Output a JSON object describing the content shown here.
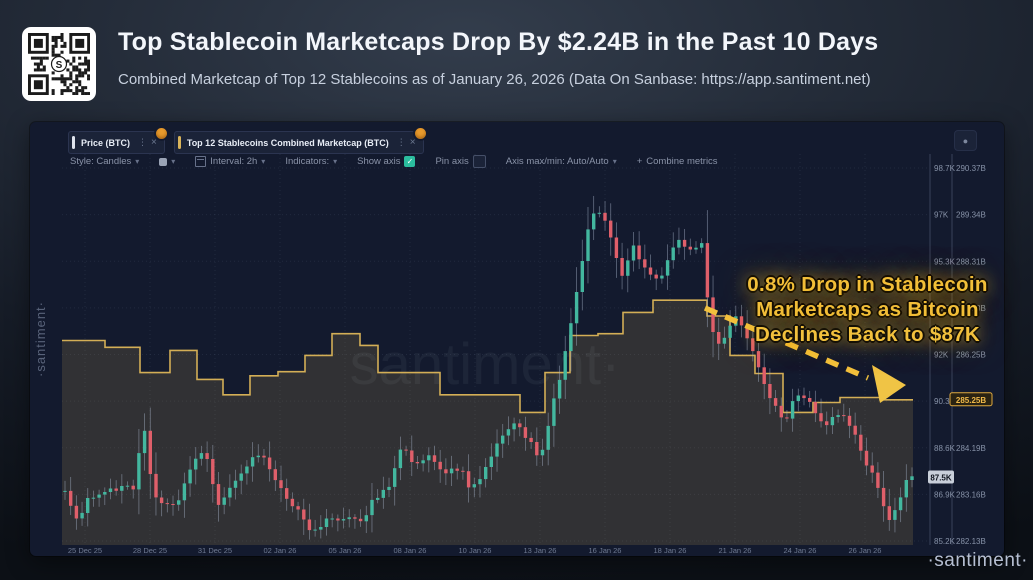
{
  "header": {
    "title": "Top Stablecoin Marketcaps Drop By $2.24B in the Past 10 Days",
    "subtitle": "Combined Marketcap of Top 12 Stablecoins as of January 26, 2026 (Data On Sanbase: https://app.santiment.net)"
  },
  "chart_toolbar": {
    "tabs": [
      {
        "label": "Price (BTC)",
        "accent": "#dfe4ee"
      },
      {
        "label": "Top 12 Stablecoins Combined Marketcap (BTC)",
        "accent": "#d9b45b"
      }
    ],
    "controls": {
      "style_label": "Style: Candles",
      "interval_label": "Interval: 2h",
      "indicators_label": "Indicators:",
      "show_axis_label": "Show axis",
      "pin_axis_label": "Pin axis",
      "axis_maxmin_label": "Axis max/min: Auto/Auto",
      "combine_label": "Combine metrics"
    }
  },
  "icons": {
    "tab_menu": "⋮",
    "tab_close": "×",
    "caret": "▾",
    "checkbox_check": "✓",
    "combine_plus": "+",
    "panel_button_dot": "●"
  },
  "annotation": {
    "lines": [
      "0.8% Drop in Stablecoin",
      "Marketcaps as Bitcoin",
      "Declines Back to $87K"
    ],
    "color": "#f2c13d"
  },
  "badges": {
    "price_current": "87.5K",
    "marketcap_current": "285.25B"
  },
  "watermark": "santiment·",
  "brand": {
    "side": "·santiment·",
    "bottom": "·santiment·"
  },
  "chart_data": {
    "type": "candlestick+step-area",
    "title": "Price (BTC) vs Top 12 Stablecoins Combined Marketcap",
    "x_dates": [
      "25 Dec 25",
      "28 Dec 25",
      "31 Dec 25",
      "02 Jan 26",
      "05 Jan 26",
      "08 Jan 26",
      "10 Jan 26",
      "13 Jan 26",
      "16 Jan 26",
      "18 Jan 26",
      "21 Jan 26",
      "24 Jan 26",
      "26 Jan 26"
    ],
    "price_axis": {
      "labels": [
        "98.7K",
        "97K",
        "95.3K",
        "93.6K",
        "92K",
        "90.3K",
        "88.6K",
        "86.9K",
        "85.2K"
      ],
      "max": 98.7,
      "min": 85.2
    },
    "marketcap_axis": {
      "labels": [
        "290.37B",
        "289.34B",
        "288.31B",
        "287.28B",
        "286.25B",
        "285.22B",
        "284.19B",
        "283.16B",
        "282.13B"
      ],
      "max": 290.37,
      "min": 282.13
    },
    "price_series_keyframes": [
      [
        35,
        87.0
      ],
      [
        45,
        85.9
      ],
      [
        60,
        86.8
      ],
      [
        80,
        87.1
      ],
      [
        105,
        87.2
      ],
      [
        113,
        89.6
      ],
      [
        122,
        87.0
      ],
      [
        135,
        86.4
      ],
      [
        150,
        86.7
      ],
      [
        162,
        88.0
      ],
      [
        175,
        88.5
      ],
      [
        188,
        86.6
      ],
      [
        205,
        87.4
      ],
      [
        228,
        88.4
      ],
      [
        240,
        87.8
      ],
      [
        255,
        86.9
      ],
      [
        270,
        86.2
      ],
      [
        278,
        85.5
      ],
      [
        295,
        85.9
      ],
      [
        320,
        86.1
      ],
      [
        333,
        85.8
      ],
      [
        345,
        86.8
      ],
      [
        360,
        87.3
      ],
      [
        370,
        88.6
      ],
      [
        385,
        88.0
      ],
      [
        400,
        88.4
      ],
      [
        415,
        87.6
      ],
      [
        430,
        87.9
      ],
      [
        442,
        87.0
      ],
      [
        455,
        87.8
      ],
      [
        470,
        88.8
      ],
      [
        485,
        89.6
      ],
      [
        498,
        88.9
      ],
      [
        510,
        88.2
      ],
      [
        522,
        90.0
      ],
      [
        535,
        92.0
      ],
      [
        548,
        94.5
      ],
      [
        560,
        96.9
      ],
      [
        572,
        97.2
      ],
      [
        582,
        95.9
      ],
      [
        592,
        94.8
      ],
      [
        602,
        95.9
      ],
      [
        615,
        95.2
      ],
      [
        628,
        94.6
      ],
      [
        638,
        95.3
      ],
      [
        650,
        96.2
      ],
      [
        660,
        95.7
      ],
      [
        672,
        95.9
      ],
      [
        680,
        92.9
      ],
      [
        692,
        92.3
      ],
      [
        705,
        93.3
      ],
      [
        718,
        92.6
      ],
      [
        730,
        91.4
      ],
      [
        742,
        90.3
      ],
      [
        755,
        89.5
      ],
      [
        768,
        90.6
      ],
      [
        782,
        90.0
      ],
      [
        795,
        89.4
      ],
      [
        808,
        89.9
      ],
      [
        820,
        89.3
      ],
      [
        832,
        88.4
      ],
      [
        845,
        87.3
      ],
      [
        858,
        85.9
      ],
      [
        868,
        86.4
      ],
      [
        878,
        87.5
      ]
    ],
    "marketcap_steps": [
      [
        32,
        286.56
      ],
      [
        75,
        286.41
      ],
      [
        110,
        285.85
      ],
      [
        140,
        286.34
      ],
      [
        167,
        285.7
      ],
      [
        193,
        285.36
      ],
      [
        220,
        285.78
      ],
      [
        248,
        285.87
      ],
      [
        275,
        286.23
      ],
      [
        302,
        286.71
      ],
      [
        330,
        286.45
      ],
      [
        348,
        285.85
      ],
      [
        410,
        285.36
      ],
      [
        490,
        284.97
      ],
      [
        515,
        285.85
      ],
      [
        540,
        286.67
      ],
      [
        568,
        286.71
      ],
      [
        593,
        287.18
      ],
      [
        623,
        287.45
      ],
      [
        677,
        287.1
      ],
      [
        700,
        286.23
      ],
      [
        725,
        285.83
      ],
      [
        753,
        284.97
      ],
      [
        783,
        285.19
      ],
      [
        810,
        285.3
      ],
      [
        850,
        285.25
      ]
    ],
    "colors": {
      "up": "#43b79f",
      "down": "#df5f6a",
      "wick": "rgba(165,178,200,0.55)",
      "marketcap_line": "#d3ae56",
      "marketcap_fill": "rgba(211,174,86,0.16)",
      "grid": "rgba(160,175,205,0.10)",
      "axis_line": "rgba(160,175,205,0.28)",
      "axis_text": "#8792a8",
      "date_text": "#6f7a92",
      "annotation": "#f2c13d"
    },
    "legend_position": "top-left-tabs",
    "grid": true
  }
}
